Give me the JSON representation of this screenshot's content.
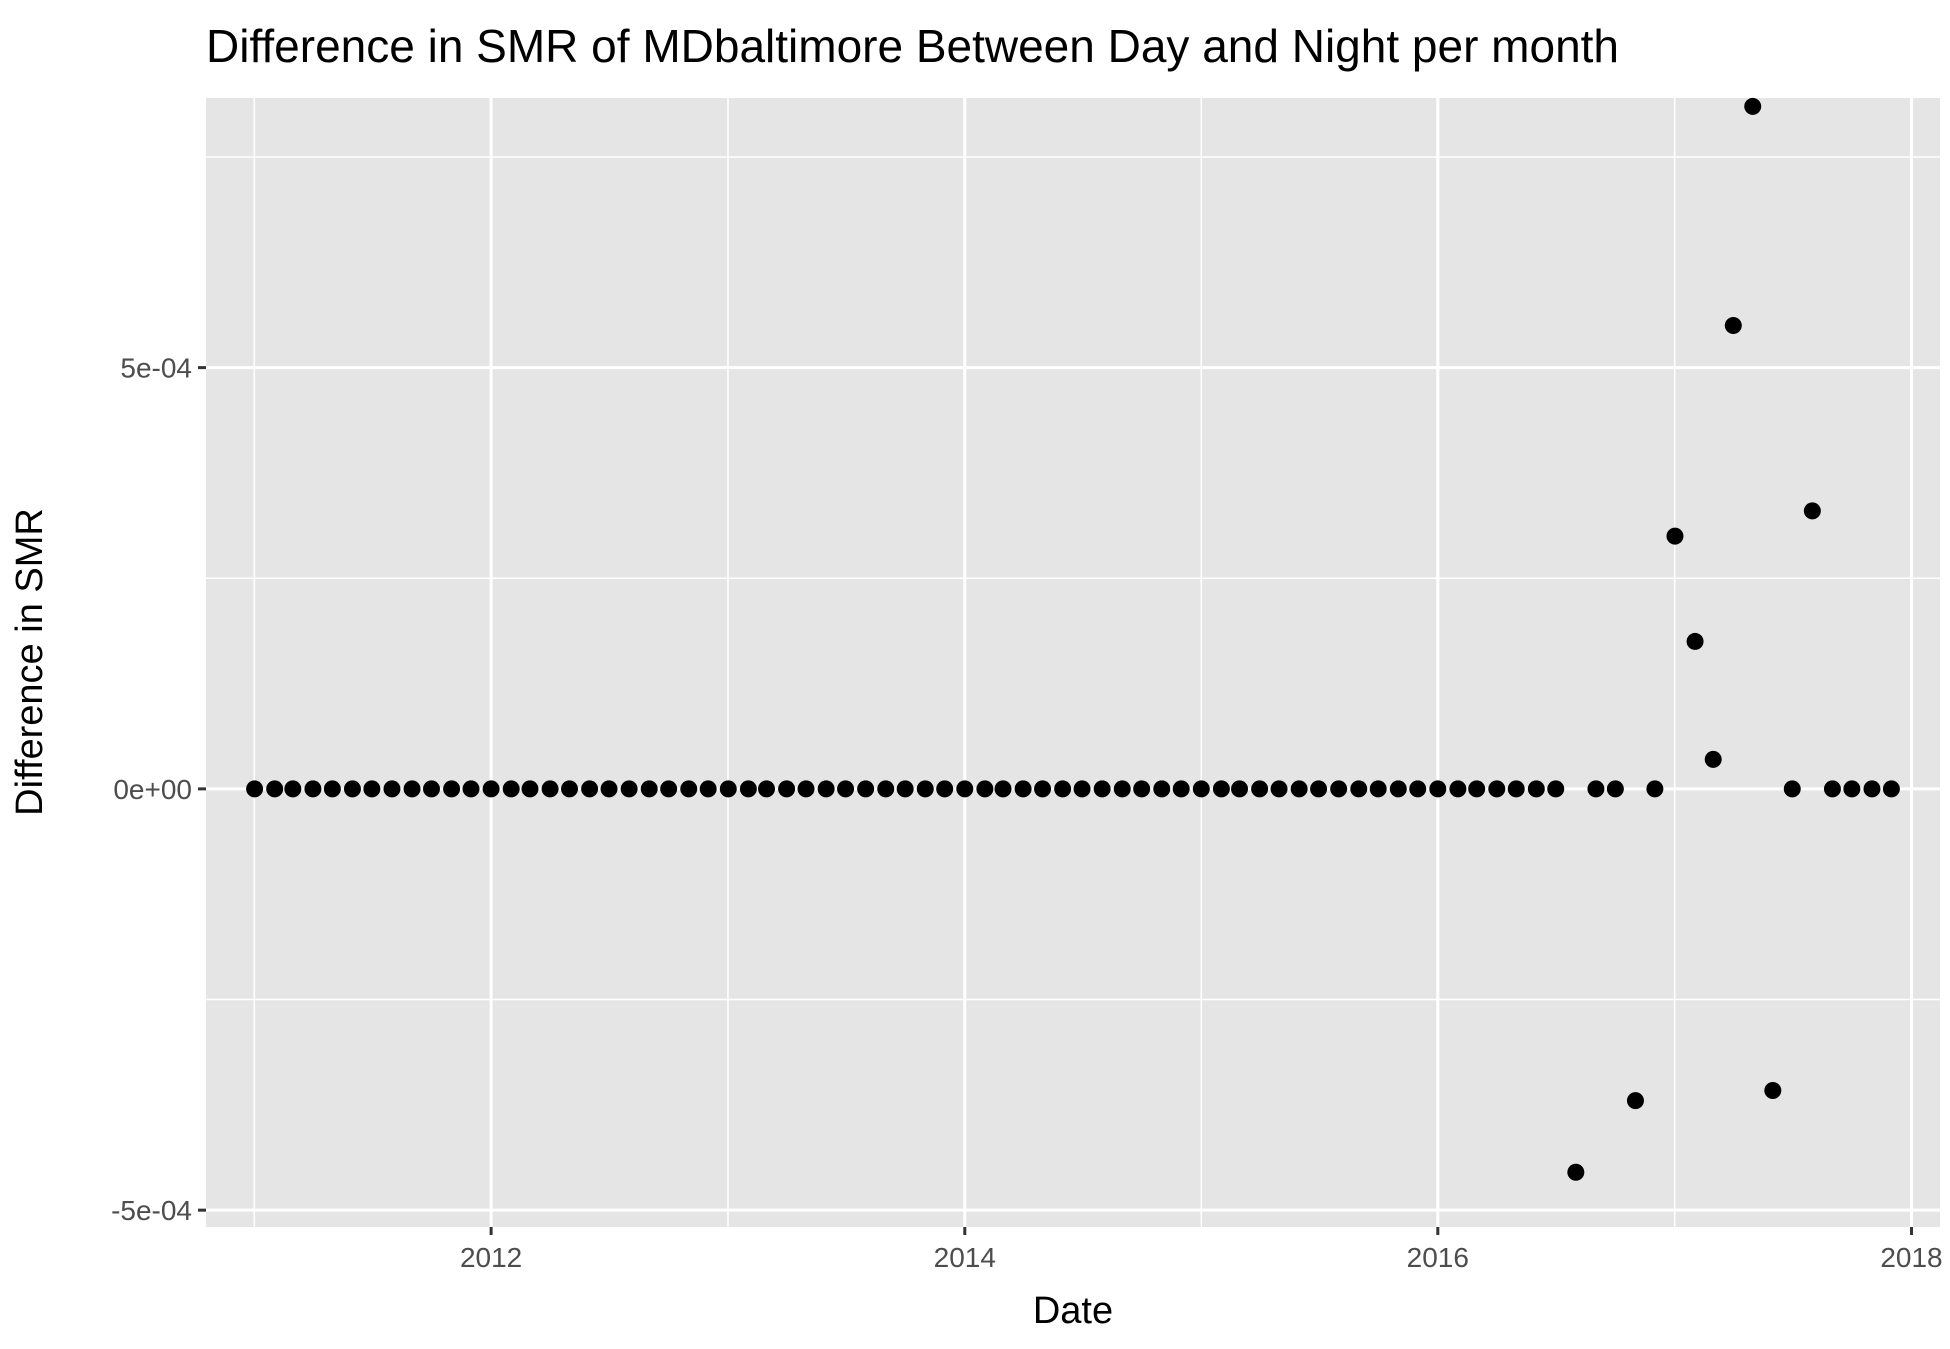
{
  "chart_data": {
    "type": "scatter",
    "title": "Difference in SMR of MDbaltimore Between Day and Night per month",
    "xlabel": "Date",
    "ylabel": "Difference in SMR",
    "x_ticks": [
      {
        "label": "2012",
        "value": "2012-01-01"
      },
      {
        "label": "2014",
        "value": "2014-01-01"
      },
      {
        "label": "2016",
        "value": "2016-01-01"
      },
      {
        "label": "2018",
        "value": "2018-01-01"
      }
    ],
    "y_ticks": [
      {
        "label": "-5e-04",
        "value": -0.0005
      },
      {
        "label": "0e+00",
        "value": 0
      },
      {
        "label": "5e-04",
        "value": 0.0005
      }
    ],
    "xlim": [
      "2010-10-18",
      "2018-02-14"
    ],
    "ylim": [
      -0.00052,
      0.00082
    ],
    "grid": true,
    "legend": "none",
    "colors": {
      "panel": "#e5e5e5",
      "grid": "#ffffff",
      "point": "#000000",
      "tick": "#333333"
    },
    "series": [
      {
        "x": [
          "2011-01-01",
          "2011-02-01",
          "2011-03-01",
          "2011-04-01",
          "2011-05-01",
          "2011-06-01",
          "2011-07-01",
          "2011-08-01",
          "2011-09-01",
          "2011-10-01",
          "2011-11-01",
          "2011-12-01",
          "2012-01-01",
          "2012-02-01",
          "2012-03-01",
          "2012-04-01",
          "2012-05-01",
          "2012-06-01",
          "2012-07-01",
          "2012-08-01",
          "2012-09-01",
          "2012-10-01",
          "2012-11-01",
          "2012-12-01",
          "2013-01-01",
          "2013-02-01",
          "2013-03-01",
          "2013-04-01",
          "2013-05-01",
          "2013-06-01",
          "2013-07-01",
          "2013-08-01",
          "2013-09-01",
          "2013-10-01",
          "2013-11-01",
          "2013-12-01",
          "2014-01-01",
          "2014-02-01",
          "2014-03-01",
          "2014-04-01",
          "2014-05-01",
          "2014-06-01",
          "2014-07-01",
          "2014-08-01",
          "2014-09-01",
          "2014-10-01",
          "2014-11-01",
          "2014-12-01",
          "2015-01-01",
          "2015-02-01",
          "2015-03-01",
          "2015-04-01",
          "2015-05-01",
          "2015-06-01",
          "2015-07-01",
          "2015-08-01",
          "2015-09-01",
          "2015-10-01",
          "2015-11-01",
          "2015-12-01",
          "2016-01-01",
          "2016-02-01",
          "2016-03-01",
          "2016-04-01",
          "2016-05-01",
          "2016-06-01",
          "2016-07-01",
          "2016-08-01",
          "2016-09-01",
          "2016-10-01",
          "2016-11-01",
          "2016-12-01",
          "2017-01-01",
          "2017-02-01",
          "2017-03-01",
          "2017-04-01",
          "2017-05-01",
          "2017-06-01",
          "2017-07-01",
          "2017-08-01",
          "2017-09-01",
          "2017-10-01",
          "2017-11-01",
          "2017-12-01"
        ],
        "y": [
          0,
          0,
          0,
          0,
          0,
          0,
          0,
          0,
          0,
          0,
          0,
          0,
          0,
          0,
          0,
          0,
          0,
          0,
          0,
          0,
          0,
          0,
          0,
          0,
          0,
          0,
          0,
          0,
          0,
          0,
          0,
          0,
          0,
          0,
          0,
          0,
          0,
          0,
          0,
          0,
          0,
          0,
          0,
          0,
          0,
          0,
          0,
          0,
          0,
          0,
          0,
          0,
          0,
          0,
          0,
          0,
          0,
          0,
          0,
          0,
          0,
          0,
          0,
          0,
          0,
          0,
          0,
          -0.000455,
          0,
          0,
          -0.00037,
          0,
          0.0003,
          0.000175,
          3.5e-05,
          0.00055,
          0.00081,
          -0.000358,
          0,
          0.00033,
          0,
          0,
          0,
          0
        ]
      }
    ]
  }
}
